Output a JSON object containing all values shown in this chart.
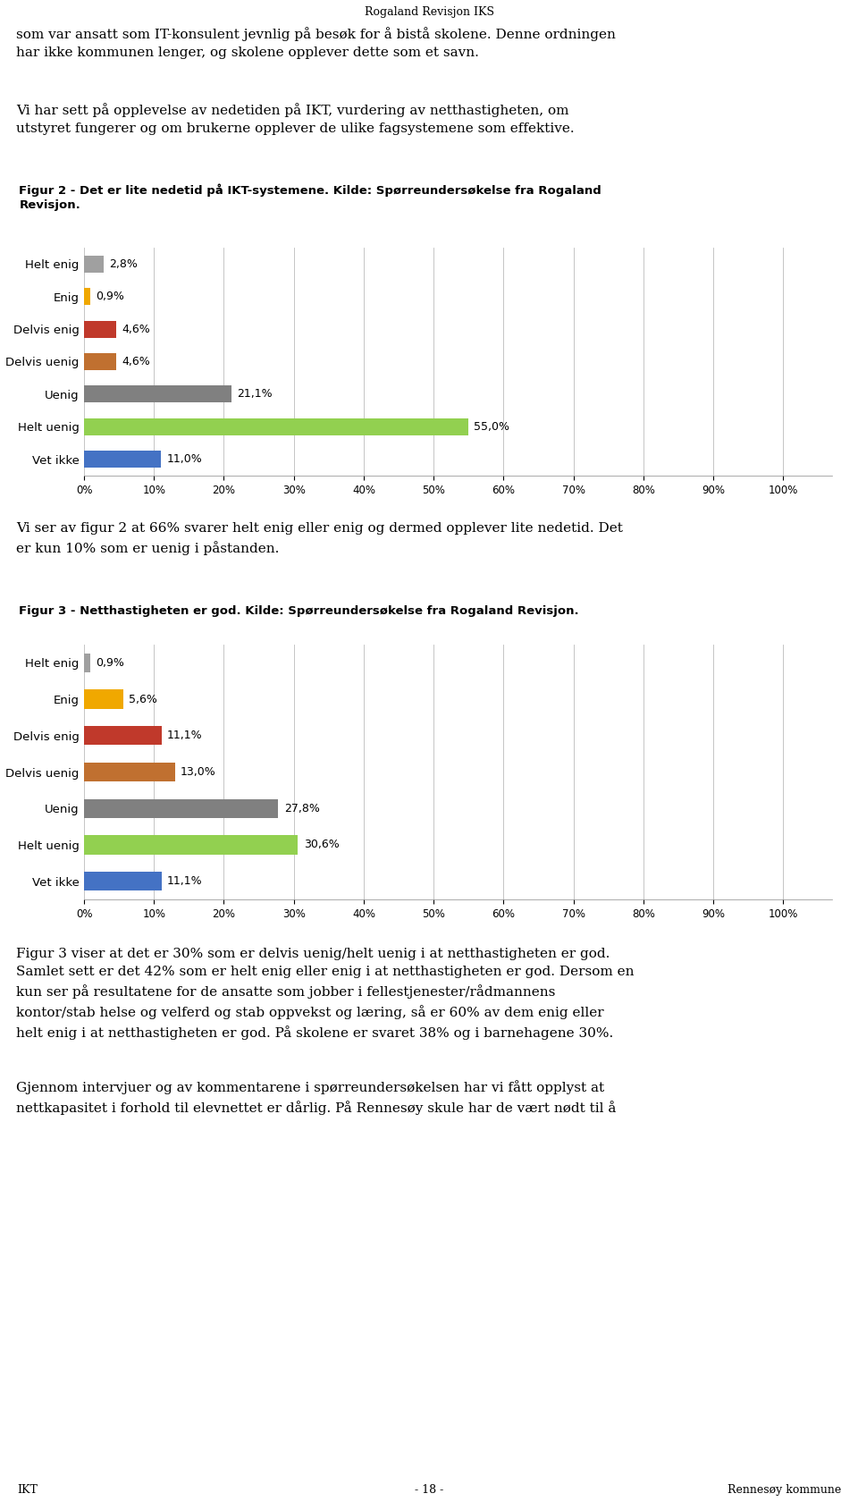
{
  "header": "Rogaland Revisjon IKS",
  "text1": "som var ansatt som IT-konsulent jevnlig på besøk for å bistå skolene. Denne ordningen\nhar ikke kommunen lenger, og skolene opplever dette som et savn.",
  "text2": "Vi har sett på opplevelse av nedetiden på IKT, vurdering av netthastigheten, om\nutstyret fungerer og om brukerne opplever de ulike fagsystemene som effektive.",
  "fig2_title": "Figur 2 - Det er lite nedetid på IKT-systemene. Kilde: Spørreundersøkelse fra Rogaland\nRevisjon.",
  "fig2_categories": [
    "Helt enig",
    "Enig",
    "Delvis enig",
    "Delvis uenig",
    "Uenig",
    "Helt uenig",
    "Vet ikke"
  ],
  "fig2_values": [
    11.0,
    55.0,
    21.1,
    4.6,
    4.6,
    0.9,
    2.8
  ],
  "fig2_colors": [
    "#4472C4",
    "#92D050",
    "#808080",
    "#C07030",
    "#C0392B",
    "#F0A800",
    "#A0A0A0"
  ],
  "fig2_labels": [
    "11,0%",
    "55,0%",
    "21,1%",
    "4,6%",
    "4,6%",
    "0,9%",
    "2,8%"
  ],
  "text3": "Vi ser av figur 2 at 66% svarer helt enig eller enig og dermed opplever lite nedetid. Det\ner kun 10% som er uenig i påstanden.",
  "fig3_title": "Figur 3 - Netthastigheten er god. Kilde: Spørreundersøkelse fra Rogaland Revisjon.",
  "fig3_categories": [
    "Helt enig",
    "Enig",
    "Delvis enig",
    "Delvis uenig",
    "Uenig",
    "Helt uenig",
    "Vet ikke"
  ],
  "fig3_values": [
    11.1,
    30.6,
    27.8,
    13.0,
    11.1,
    5.6,
    0.9
  ],
  "fig3_colors": [
    "#4472C4",
    "#92D050",
    "#808080",
    "#C07030",
    "#C0392B",
    "#F0A800",
    "#A0A0A0"
  ],
  "fig3_labels": [
    "11,1%",
    "30,6%",
    "27,8%",
    "13,0%",
    "11,1%",
    "5,6%",
    "0,9%"
  ],
  "text4": "Figur 3 viser at det er 30% som er delvis uenig/helt uenig i at netthastigheten er god.\nSamlet sett er det 42% som er helt enig eller enig i at netthastigheten er god. Dersom en\nkun ser på resultatene for de ansatte som jobber i fellestjenester/rådmannens\nkontor/stab helse og velferd og stab oppvekst og læring, så er 60% av dem enig eller\nhelt enig i at netthastigheten er god. På skolene er svaret 38% og i barnehagene 30%.",
  "text5": "Gjennom intervjuer og av kommentarene i spørreundersøkelsen har vi fått opplyst at\nnettkapasitet i forhold til elevnettet er dårlig. På Rennesøy skule har de vært nødt til å",
  "footer_left": "IKT",
  "footer_center": "- 18 -",
  "footer_right": "Rennesøy kommune",
  "bg_color": "#FFFFFF",
  "fig_title_bg": "#DCDCDC",
  "chart_bg_color": "#FFFFFF",
  "xtick_labels": [
    "0%",
    "10%",
    "20%",
    "30%",
    "40%",
    "50%",
    "60%",
    "70%",
    "80%",
    "90%",
    "100%"
  ],
  "xtick_values": [
    0,
    10,
    20,
    30,
    40,
    50,
    60,
    70,
    80,
    90,
    100
  ]
}
